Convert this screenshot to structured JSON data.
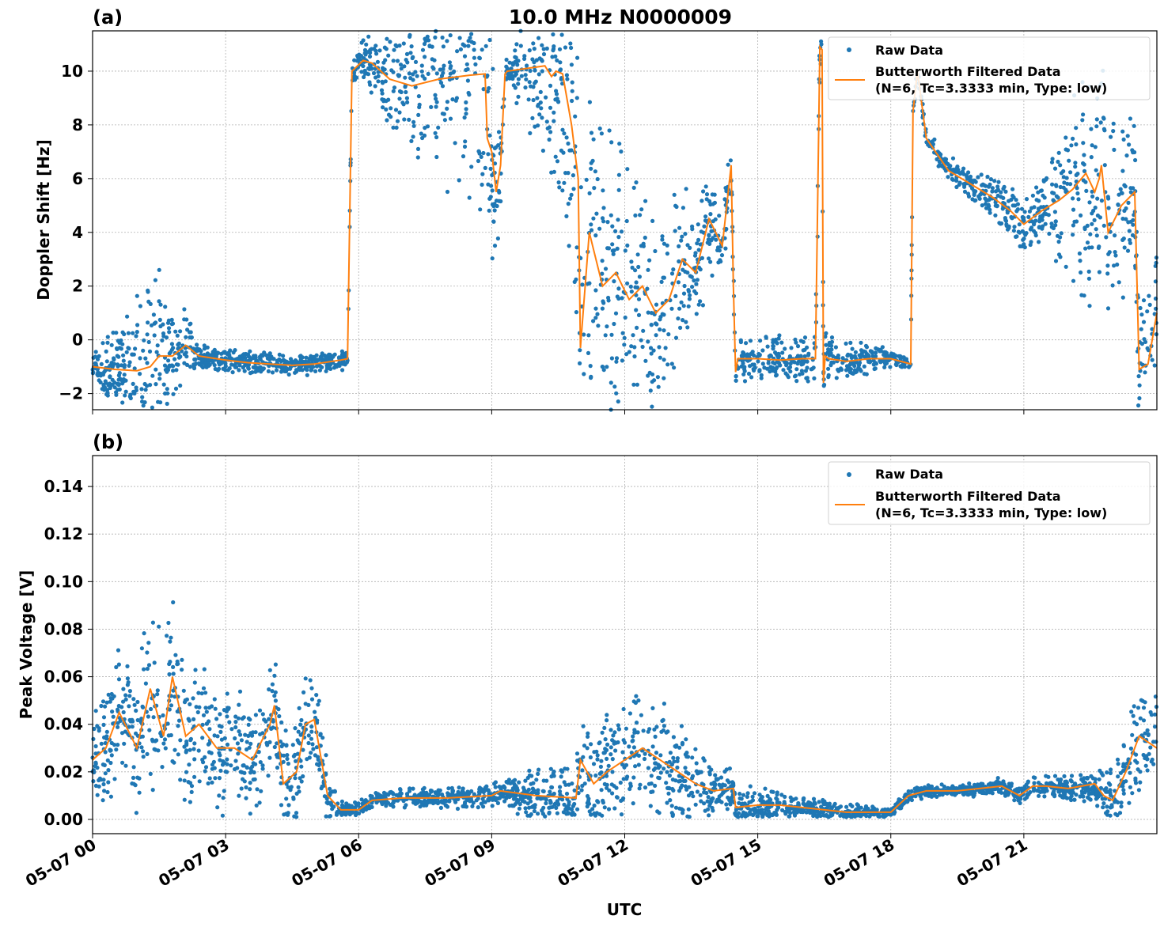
{
  "figure": {
    "title": "10.0 MHz N0000009",
    "xlabel": "UTC",
    "x_ticks": [
      "05-07 00",
      "05-07 03",
      "05-07 06",
      "05-07 09",
      "05-07 12",
      "05-07 15",
      "05-07 18",
      "05-07 21"
    ],
    "colors": {
      "raw": "#1f77b4",
      "filtered": "#ff7f0e",
      "grid": "#b0b0b0"
    }
  },
  "chart_data": [
    {
      "type": "scatter",
      "panel_label": "(a)",
      "ylabel": "Doppler Shift [Hz]",
      "xlim_hours": [
        0,
        24
      ],
      "ylim": [
        -2.6,
        11.5
      ],
      "yticks": [
        -2,
        0,
        2,
        4,
        6,
        8,
        10
      ],
      "ytick_labels": [
        "−2",
        "0",
        "2",
        "4",
        "6",
        "8",
        "10"
      ],
      "grid": true,
      "legend_position": "top-right",
      "legend": [
        "Raw Data",
        "Butterworth Filtered Data",
        "(N=6, Tc=3.3333 min, Type: low)"
      ],
      "series": [
        {
          "name": "Butterworth Filtered Data",
          "style": "line",
          "x_hours": [
            0,
            0.5,
            1,
            1.3,
            1.5,
            1.8,
            2.1,
            2.4,
            3,
            3.5,
            4,
            4.5,
            5,
            5.6,
            5.75,
            5.85,
            6.1,
            6.3,
            6.7,
            7.2,
            7.8,
            8.5,
            8.85,
            8.9,
            9.0,
            9.1,
            9.2,
            9.3,
            9.35,
            10.2,
            10.35,
            10.45,
            10.6,
            10.8,
            10.95,
            11.0,
            11.2,
            11.5,
            11.8,
            12.1,
            12.4,
            12.7,
            13,
            13.3,
            13.6,
            13.9,
            14.2,
            14.4,
            14.45,
            14.5,
            14.55,
            15,
            15.5,
            16,
            16.3,
            16.4,
            16.45,
            16.48,
            16.52,
            16.6,
            17,
            17.5,
            18,
            18.45,
            18.5,
            18.6,
            18.8,
            19.3,
            19.8,
            20.3,
            20.7,
            21,
            21.4,
            21.8,
            22.1,
            22.4,
            22.6,
            22.7,
            22.75,
            22.9,
            23.2,
            23.5,
            23.6,
            23.8,
            24
          ],
          "y": [
            -1.0,
            -1.1,
            -1.15,
            -1.0,
            -0.6,
            -0.6,
            -0.2,
            -0.6,
            -0.75,
            -0.85,
            -0.9,
            -0.95,
            -0.9,
            -0.75,
            -0.7,
            10.0,
            10.4,
            10.3,
            9.7,
            9.45,
            9.7,
            9.85,
            9.9,
            7.5,
            7.0,
            5.5,
            6.5,
            9.9,
            10.0,
            10.2,
            9.8,
            10.0,
            9.9,
            8.0,
            6.0,
            -0.3,
            4.0,
            2.0,
            2.5,
            1.5,
            2.0,
            1.0,
            1.5,
            3.0,
            2.5,
            4.5,
            3.5,
            6.5,
            2.0,
            -1.2,
            -0.7,
            -0.7,
            -0.75,
            -0.7,
            -0.7,
            10.9,
            10.8,
            -1.6,
            -0.6,
            -0.7,
            -0.8,
            -0.7,
            -0.7,
            -0.9,
            8.5,
            10.0,
            7.5,
            6.3,
            5.8,
            5.3,
            4.8,
            4.3,
            4.8,
            5.2,
            5.6,
            6.2,
            5.5,
            6.0,
            6.5,
            4.0,
            5.0,
            5.5,
            -1.1,
            -0.9,
            1.0
          ]
        },
        {
          "name": "Raw Data",
          "style": "markers",
          "note": "dense per-second samples scattered around the filtered curve",
          "spread_hz": [
            [
              0,
              0.4
            ],
            [
              1.3,
              3.0
            ],
            [
              2.4,
              0.4
            ],
            [
              5.85,
              0.3
            ],
            [
              8.85,
              5.0
            ],
            [
              9.35,
              0.3
            ],
            [
              10.5,
              4.5
            ],
            [
              11.0,
              6.0
            ],
            [
              14.5,
              0.7
            ],
            [
              16.45,
              0.8
            ],
            [
              18.45,
              0.2
            ],
            [
              21.5,
              1.0
            ],
            [
              22.3,
              4.0
            ],
            [
              23.5,
              2.5
            ],
            [
              24,
              2.5
            ]
          ]
        }
      ]
    },
    {
      "type": "scatter",
      "panel_label": "(b)",
      "ylabel": "Peak Voltage [V]",
      "xlim_hours": [
        0,
        24
      ],
      "ylim": [
        -0.006,
        0.153
      ],
      "yticks": [
        0.0,
        0.02,
        0.04,
        0.06,
        0.08,
        0.1,
        0.12,
        0.14
      ],
      "ytick_labels": [
        "0.00",
        "0.02",
        "0.04",
        "0.06",
        "0.08",
        "0.10",
        "0.12",
        "0.14"
      ],
      "grid": true,
      "legend_position": "top-right",
      "legend": [
        "Raw Data",
        "Butterworth Filtered Data",
        "(N=6, Tc=3.3333 min, Type: low)"
      ],
      "series": [
        {
          "name": "Butterworth Filtered Data",
          "style": "line",
          "x_hours": [
            0,
            0.3,
            0.6,
            1,
            1.3,
            1.6,
            1.8,
            2.1,
            2.4,
            2.8,
            3.2,
            3.6,
            4.0,
            4.1,
            4.3,
            4.6,
            4.8,
            5.0,
            5.3,
            5.6,
            6.0,
            6.3,
            7,
            8,
            9,
            9.2,
            10,
            10.9,
            11.0,
            11.3,
            11.6,
            12,
            12.4,
            12.8,
            13.2,
            13.6,
            14,
            14.45,
            14.5,
            15,
            15.5,
            16,
            16.5,
            17,
            17.5,
            18,
            18.4,
            18.8,
            19.5,
            20,
            20.5,
            20.9,
            21.2,
            21.5,
            22,
            22.3,
            22.6,
            22.8,
            23.0,
            23.3,
            23.6,
            24
          ],
          "y": [
            0.025,
            0.03,
            0.045,
            0.03,
            0.055,
            0.035,
            0.06,
            0.035,
            0.04,
            0.03,
            0.03,
            0.025,
            0.04,
            0.048,
            0.015,
            0.02,
            0.04,
            0.042,
            0.01,
            0.004,
            0.004,
            0.008,
            0.009,
            0.009,
            0.01,
            0.012,
            0.01,
            0.009,
            0.025,
            0.015,
            0.02,
            0.025,
            0.03,
            0.025,
            0.02,
            0.015,
            0.012,
            0.013,
            0.005,
            0.006,
            0.006,
            0.005,
            0.004,
            0.003,
            0.003,
            0.003,
            0.01,
            0.012,
            0.012,
            0.013,
            0.014,
            0.01,
            0.014,
            0.014,
            0.013,
            0.014,
            0.015,
            0.01,
            0.008,
            0.02,
            0.035,
            0.03
          ]
        },
        {
          "name": "Raw Data",
          "style": "markers",
          "note": "dense per-second samples scattered around the filtered curve",
          "spread_v": [
            [
              0,
              0.018
            ],
            [
              1.5,
              0.035
            ],
            [
              2.5,
              0.025
            ],
            [
              4.0,
              0.02
            ],
            [
              4.8,
              0.025
            ],
            [
              5.6,
              0.003
            ],
            [
              9.0,
              0.004
            ],
            [
              11.0,
              0.015
            ],
            [
              12.5,
              0.025
            ],
            [
              14.4,
              0.008
            ],
            [
              16,
              0.004
            ],
            [
              18,
              0.002
            ],
            [
              21,
              0.003
            ],
            [
              22.5,
              0.006
            ],
            [
              23.6,
              0.02
            ],
            [
              24,
              0.02
            ]
          ]
        }
      ]
    }
  ]
}
